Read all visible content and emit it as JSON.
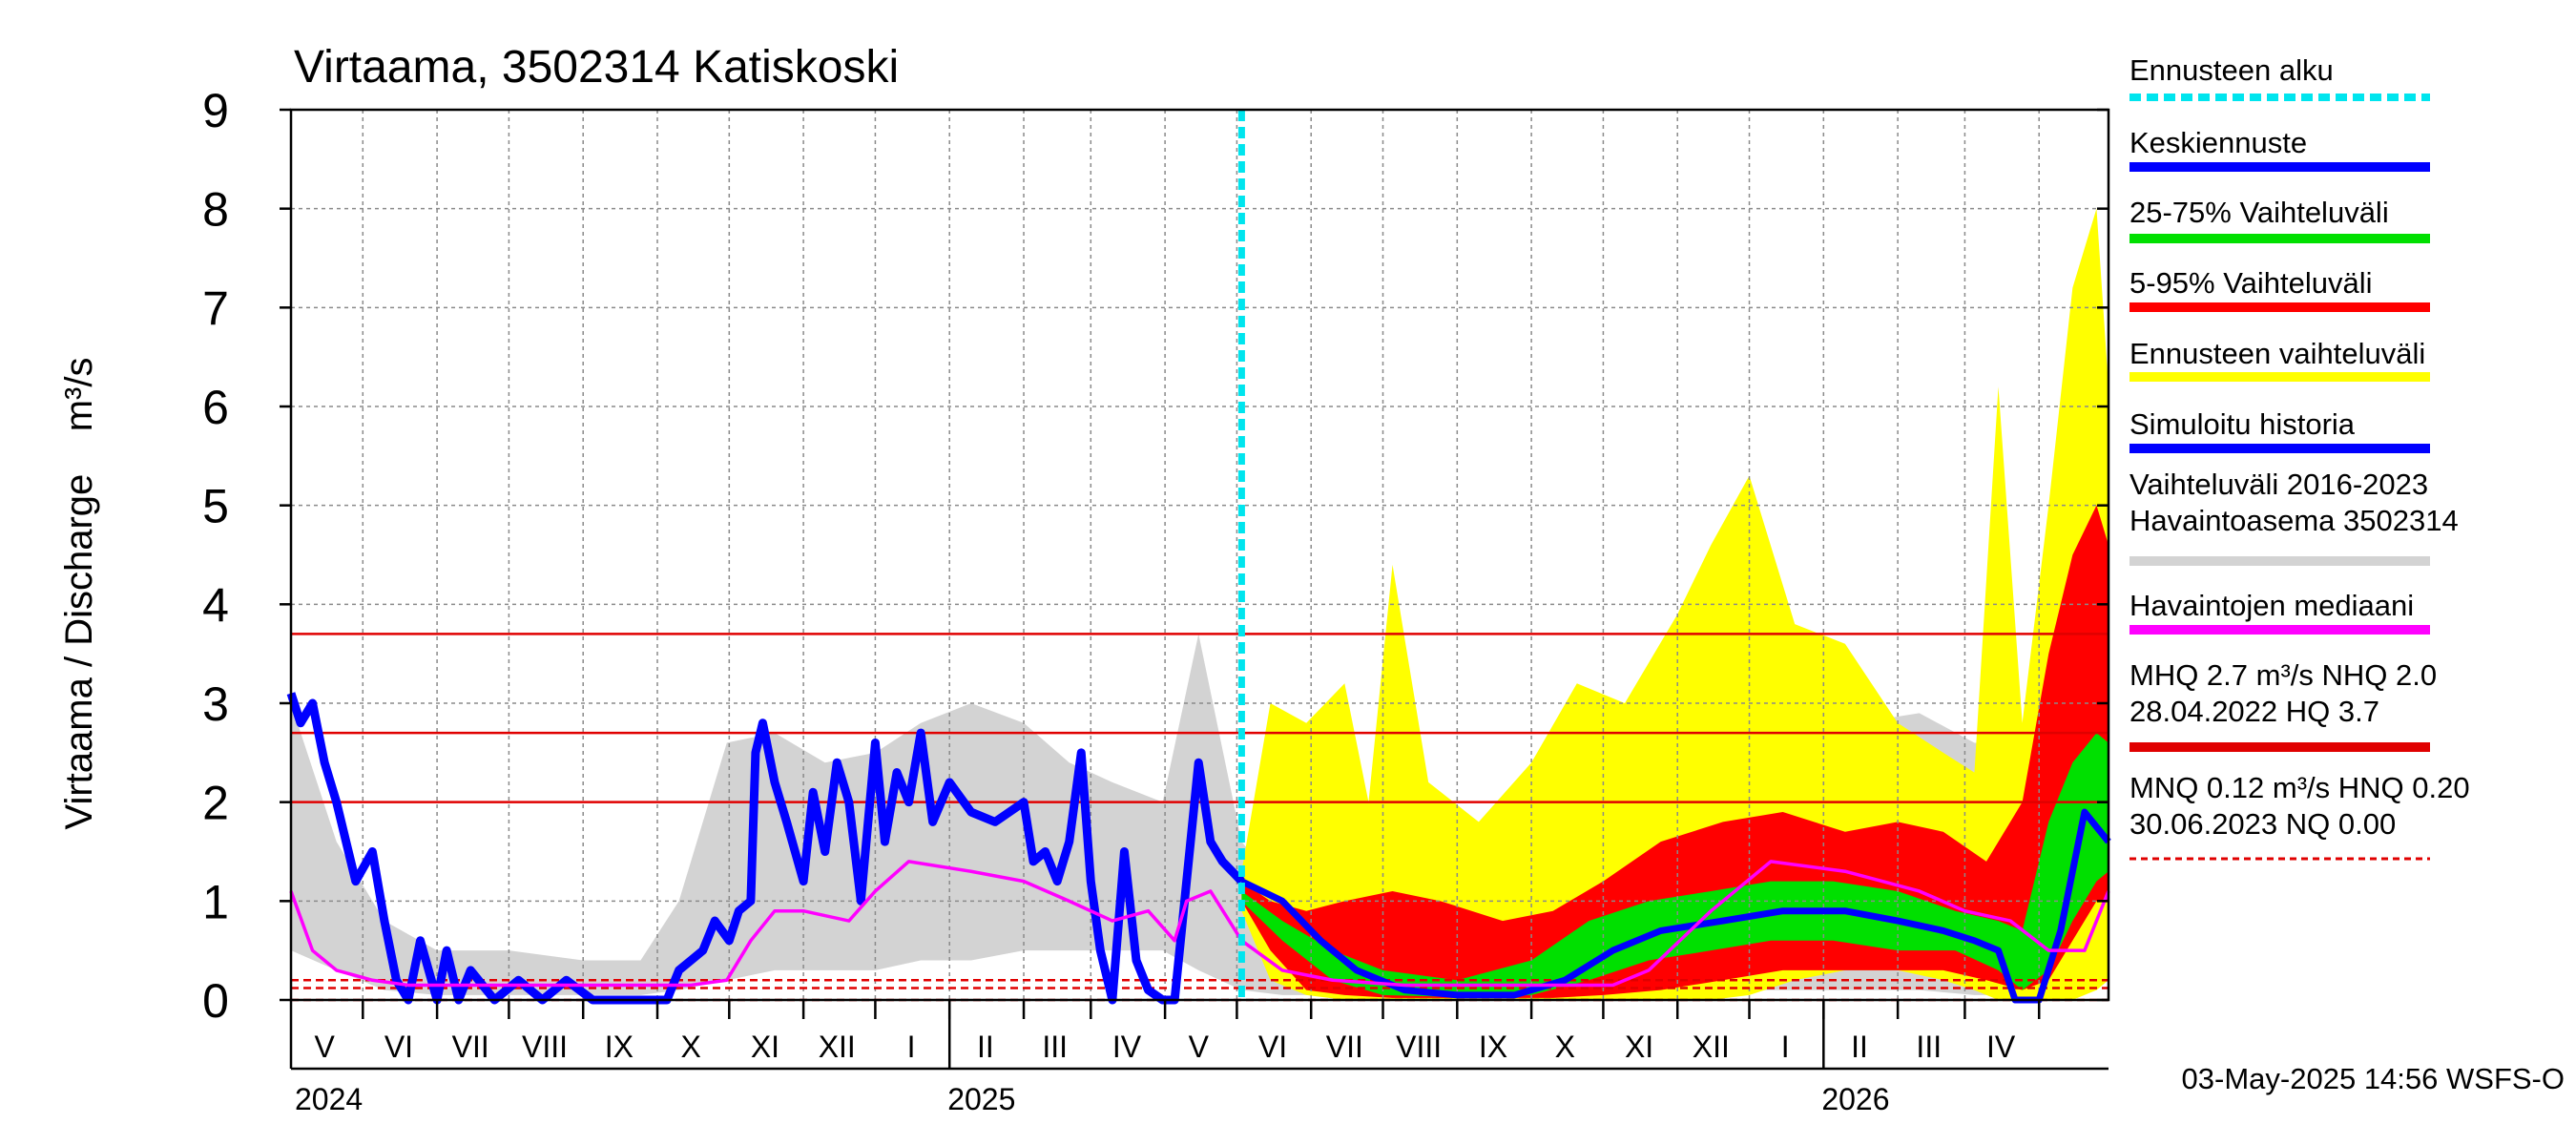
{
  "chart_data": {
    "type": "line",
    "title": "Virtaama, 3502314 Katiskoski",
    "ylabel": "Virtaama / Discharge    m³/s",
    "ylim": [
      0,
      9
    ],
    "yticks": [
      "0",
      "1",
      "2",
      "3",
      "4",
      "5",
      "6",
      "7",
      "8",
      "9"
    ],
    "x_start": "2024-04-01",
    "x_end": "2026-04-30",
    "forecast_start": "2025-05-03",
    "month_labels": [
      {
        "date": "2024-04-15",
        "label": "V"
      },
      {
        "date": "2024-05-16",
        "label": "VI"
      },
      {
        "date": "2024-06-15",
        "label": "VII"
      },
      {
        "date": "2024-07-16",
        "label": "VIII"
      },
      {
        "date": "2024-08-16",
        "label": "IX"
      },
      {
        "date": "2024-09-15",
        "label": "X"
      },
      {
        "date": "2024-10-16",
        "label": "XI"
      },
      {
        "date": "2024-11-15",
        "label": "XII"
      },
      {
        "date": "2024-12-16",
        "label": "I"
      },
      {
        "date": "2025-01-16",
        "label": "II"
      },
      {
        "date": "2025-02-14",
        "label": "III"
      },
      {
        "date": "2025-03-16",
        "label": "IV"
      },
      {
        "date": "2025-04-15",
        "label": "V"
      },
      {
        "date": "2025-05-16",
        "label": "VI"
      },
      {
        "date": "2025-06-15",
        "label": "VII"
      },
      {
        "date": "2025-07-16",
        "label": "VIII"
      },
      {
        "date": "2025-08-16",
        "label": "IX"
      },
      {
        "date": "2025-09-15",
        "label": "X"
      },
      {
        "date": "2025-10-16",
        "label": "XI"
      },
      {
        "date": "2025-11-15",
        "label": "XII"
      },
      {
        "date": "2025-12-16",
        "label": "I"
      },
      {
        "date": "2026-01-16",
        "label": "II"
      },
      {
        "date": "2026-02-14",
        "label": "III"
      },
      {
        "date": "2026-03-16",
        "label": "IV"
      }
    ],
    "year_labels": [
      {
        "date": "2024-04-01",
        "label": "2024"
      },
      {
        "date": "2025-01-01",
        "label": "2025"
      },
      {
        "date": "2026-01-01",
        "label": "2026"
      }
    ],
    "reference_lines": [
      {
        "name": "HQ",
        "value": 3.7,
        "color": "#e00000",
        "style": "solid"
      },
      {
        "name": "MHQ",
        "value": 2.7,
        "color": "#e00000",
        "style": "solid"
      },
      {
        "name": "NHQ",
        "value": 2.0,
        "color": "#e00000",
        "style": "solid"
      },
      {
        "name": "HNQ",
        "value": 0.2,
        "color": "#e00000",
        "style": "dashed"
      },
      {
        "name": "MNQ",
        "value": 0.12,
        "color": "#e00000",
        "style": "dashed"
      },
      {
        "name": "NQ",
        "value": 0.0,
        "color": "#e00000",
        "style": "dashed"
      }
    ],
    "series": [
      {
        "name": "Vaihteluväli 2016-2023 Havaintoasema 3502314",
        "kind": "band",
        "color": "#d3d3d3",
        "x": [
          "2024-04-01",
          "2024-04-20",
          "2024-05-10",
          "2024-06-01",
          "2024-07-01",
          "2024-08-01",
          "2024-08-25",
          "2024-09-10",
          "2024-09-30",
          "2024-10-20",
          "2024-11-10",
          "2024-12-01",
          "2024-12-20",
          "2025-01-10",
          "2025-02-01",
          "2025-02-20",
          "2025-03-10",
          "2025-03-31",
          "2025-04-15",
          "2025-05-03",
          "2025-05-20",
          "2025-06-10",
          "2025-07-01",
          "2025-08-01",
          "2025-08-25",
          "2025-09-15",
          "2025-10-10",
          "2025-11-01",
          "2025-11-25",
          "2025-12-20",
          "2026-01-15",
          "2026-02-10",
          "2026-03-05",
          "2026-03-25",
          "2026-04-15",
          "2026-04-30"
        ],
        "low": [
          0.5,
          0.3,
          0.1,
          0.05,
          0.05,
          0.05,
          0.05,
          0.1,
          0.2,
          0.3,
          0.3,
          0.3,
          0.4,
          0.4,
          0.5,
          0.5,
          0.5,
          0.5,
          0.3,
          0.1,
          0.05,
          0.05,
          0.05,
          0.05,
          0.05,
          0.05,
          0.05,
          0.05,
          0.1,
          0.1,
          0.1,
          0.1,
          0.05,
          0.05,
          0.1,
          0.2
        ],
        "high": [
          3.0,
          1.6,
          0.8,
          0.5,
          0.5,
          0.4,
          0.4,
          1.0,
          2.6,
          2.7,
          2.4,
          2.5,
          2.8,
          3.0,
          2.8,
          2.4,
          2.2,
          2.0,
          3.7,
          1.6,
          1.1,
          0.8,
          0.7,
          0.7,
          1.2,
          1.8,
          2.4,
          2.6,
          2.6,
          2.7,
          2.8,
          2.9,
          2.6,
          2.6,
          3.7,
          3.4
        ]
      },
      {
        "name": "Ennusteen vaihteluväli",
        "kind": "band",
        "color": "#ffff00",
        "x": [
          "2025-05-03",
          "2025-05-15",
          "2025-05-30",
          "2025-06-15",
          "2025-06-25",
          "2025-07-05",
          "2025-07-20",
          "2025-08-10",
          "2025-09-01",
          "2025-09-20",
          "2025-10-10",
          "2025-11-01",
          "2025-11-15",
          "2025-12-01",
          "2025-12-20",
          "2026-01-10",
          "2026-02-01",
          "2026-02-20",
          "2026-03-05",
          "2026-03-15",
          "2026-03-25",
          "2026-04-05",
          "2026-04-15",
          "2026-04-25",
          "2026-04-30"
        ],
        "low": [
          0.9,
          0.2,
          0.05,
          0.0,
          0.0,
          0.0,
          0.0,
          0.0,
          0.0,
          0.0,
          0.0,
          0.0,
          0.0,
          0.05,
          0.2,
          0.3,
          0.3,
          0.2,
          0.1,
          0.0,
          0.0,
          0.0,
          0.0,
          0.1,
          0.2
        ],
        "high": [
          1.3,
          3.0,
          2.8,
          3.2,
          2.0,
          4.4,
          2.2,
          1.8,
          2.4,
          3.2,
          3.0,
          3.9,
          4.6,
          5.3,
          3.8,
          3.6,
          2.8,
          2.5,
          2.3,
          6.2,
          2.8,
          5.0,
          7.2,
          8.0,
          6.2
        ]
      },
      {
        "name": "5-95% Vaihteluväli",
        "kind": "band",
        "color": "#ff0000",
        "x": [
          "2025-05-03",
          "2025-05-15",
          "2025-05-30",
          "2025-06-15",
          "2025-07-05",
          "2025-07-25",
          "2025-08-20",
          "2025-09-10",
          "2025-10-01",
          "2025-10-25",
          "2025-11-20",
          "2025-12-15",
          "2026-01-10",
          "2026-02-01",
          "2026-02-20",
          "2026-03-10",
          "2026-03-25",
          "2026-04-05",
          "2026-04-15",
          "2026-04-25",
          "2026-04-30"
        ],
        "low": [
          1.0,
          0.5,
          0.1,
          0.05,
          0.02,
          0.02,
          0.02,
          0.02,
          0.05,
          0.1,
          0.2,
          0.3,
          0.3,
          0.3,
          0.3,
          0.2,
          0.1,
          0.2,
          0.6,
          1.0,
          1.0
        ],
        "high": [
          1.2,
          1.0,
          0.9,
          1.0,
          1.1,
          1.0,
          0.8,
          0.9,
          1.2,
          1.6,
          1.8,
          1.9,
          1.7,
          1.8,
          1.7,
          1.4,
          2.0,
          3.5,
          4.5,
          5.0,
          4.6
        ]
      },
      {
        "name": "25-75% Vaihteluväli",
        "kind": "band",
        "color": "#00e000",
        "x": [
          "2025-05-03",
          "2025-05-20",
          "2025-06-10",
          "2025-07-01",
          "2025-08-01",
          "2025-09-01",
          "2025-09-25",
          "2025-10-20",
          "2025-11-15",
          "2025-12-10",
          "2026-01-05",
          "2026-02-01",
          "2026-02-25",
          "2026-03-15",
          "2026-03-25",
          "2026-04-05",
          "2026-04-15",
          "2026-04-25",
          "2026-04-30"
        ],
        "low": [
          1.0,
          0.6,
          0.2,
          0.05,
          0.03,
          0.05,
          0.2,
          0.4,
          0.5,
          0.6,
          0.6,
          0.5,
          0.5,
          0.3,
          0.1,
          0.3,
          0.8,
          1.2,
          1.3
        ],
        "high": [
          1.1,
          0.8,
          0.5,
          0.3,
          0.2,
          0.4,
          0.8,
          1.0,
          1.1,
          1.2,
          1.2,
          1.1,
          0.9,
          0.8,
          0.7,
          1.8,
          2.4,
          2.7,
          2.6
        ]
      },
      {
        "name": "Simuloitu historia",
        "kind": "line",
        "color": "#0000ff",
        "x": [
          "2024-04-01",
          "2024-04-05",
          "2024-04-10",
          "2024-04-15",
          "2024-04-20",
          "2024-04-28",
          "2024-05-05",
          "2024-05-10",
          "2024-05-15",
          "2024-05-20",
          "2024-05-25",
          "2024-06-01",
          "2024-06-05",
          "2024-06-10",
          "2024-06-15",
          "2024-06-25",
          "2024-07-05",
          "2024-07-15",
          "2024-07-25",
          "2024-08-05",
          "2024-08-25",
          "2024-09-05",
          "2024-09-10",
          "2024-09-15",
          "2024-09-20",
          "2024-09-25",
          "2024-10-01",
          "2024-10-05",
          "2024-10-10",
          "2024-10-12",
          "2024-10-15",
          "2024-10-20",
          "2024-10-25",
          "2024-11-01",
          "2024-11-05",
          "2024-11-10",
          "2024-11-15",
          "2024-11-20",
          "2024-11-25",
          "2024-12-01",
          "2024-12-05",
          "2024-12-10",
          "2024-12-15",
          "2024-12-20",
          "2024-12-25",
          "2025-01-01",
          "2025-01-10",
          "2025-01-20",
          "2025-02-01",
          "2025-02-05",
          "2025-02-10",
          "2025-02-15",
          "2025-02-20",
          "2025-02-25",
          "2025-03-01",
          "2025-03-05",
          "2025-03-10",
          "2025-03-15",
          "2025-03-20",
          "2025-03-25",
          "2025-03-31",
          "2025-04-05",
          "2025-04-10",
          "2025-04-15",
          "2025-04-20",
          "2025-04-25",
          "2025-05-03"
        ],
        "y": [
          3.1,
          2.8,
          3.0,
          2.4,
          2.0,
          1.2,
          1.5,
          0.8,
          0.2,
          0.0,
          0.6,
          0.0,
          0.5,
          0.0,
          0.3,
          0.0,
          0.2,
          0.0,
          0.2,
          0.0,
          0.0,
          0.0,
          0.3,
          0.4,
          0.5,
          0.8,
          0.6,
          0.9,
          1.0,
          2.5,
          2.8,
          2.2,
          1.8,
          1.2,
          2.1,
          1.5,
          2.4,
          2.0,
          1.0,
          2.6,
          1.6,
          2.3,
          2.0,
          2.7,
          1.8,
          2.2,
          1.9,
          1.8,
          2.0,
          1.4,
          1.5,
          1.2,
          1.6,
          2.5,
          1.2,
          0.5,
          0.0,
          1.5,
          0.4,
          0.1,
          0.0,
          0.0,
          1.2,
          2.4,
          1.6,
          1.4,
          1.2
        ]
      },
      {
        "name": "Keskiennuste",
        "kind": "line",
        "color": "#0000ff",
        "x": [
          "2025-05-03",
          "2025-05-20",
          "2025-06-05",
          "2025-06-20",
          "2025-07-10",
          "2025-08-01",
          "2025-08-25",
          "2025-09-15",
          "2025-10-05",
          "2025-10-25",
          "2025-11-20",
          "2025-12-15",
          "2026-01-10",
          "2026-02-01",
          "2026-02-20",
          "2026-03-05",
          "2026-03-15",
          "2026-03-22",
          "2026-04-01",
          "2026-04-10",
          "2026-04-20",
          "2026-04-30"
        ],
        "y": [
          1.2,
          1.0,
          0.6,
          0.3,
          0.1,
          0.05,
          0.05,
          0.2,
          0.5,
          0.7,
          0.8,
          0.9,
          0.9,
          0.8,
          0.7,
          0.6,
          0.5,
          0.0,
          0.0,
          0.7,
          1.9,
          1.6
        ]
      },
      {
        "name": "Havaintojen mediaani",
        "kind": "line",
        "color": "#ff00ff",
        "x": [
          "2024-04-01",
          "2024-04-10",
          "2024-04-20",
          "2024-05-05",
          "2024-05-20",
          "2024-06-10",
          "2024-07-15",
          "2024-08-15",
          "2024-09-15",
          "2024-09-30",
          "2024-10-10",
          "2024-10-20",
          "2024-11-01",
          "2024-11-20",
          "2024-12-01",
          "2024-12-15",
          "2025-01-10",
          "2025-02-01",
          "2025-02-20",
          "2025-03-10",
          "2025-03-25",
          "2025-04-05",
          "2025-04-10",
          "2025-04-20",
          "2025-05-03",
          "2025-05-20",
          "2025-06-10",
          "2025-07-10",
          "2025-08-10",
          "2025-09-10",
          "2025-10-05",
          "2025-10-20",
          "2025-11-15",
          "2025-12-10",
          "2026-01-10",
          "2026-02-10",
          "2026-03-01",
          "2026-03-20",
          "2026-04-05",
          "2026-04-20",
          "2026-04-30"
        ],
        "y": [
          1.1,
          0.5,
          0.3,
          0.2,
          0.15,
          0.15,
          0.15,
          0.15,
          0.15,
          0.2,
          0.6,
          0.9,
          0.9,
          0.8,
          1.1,
          1.4,
          1.3,
          1.2,
          1.0,
          0.8,
          0.9,
          0.6,
          1.0,
          1.1,
          0.6,
          0.3,
          0.2,
          0.15,
          0.15,
          0.15,
          0.15,
          0.3,
          0.9,
          1.4,
          1.3,
          1.1,
          0.9,
          0.8,
          0.5,
          0.5,
          1.1
        ]
      },
      {
        "name": "Ennusteen alku",
        "kind": "vline",
        "color": "#00e5ee",
        "x": "2025-05-03"
      }
    ],
    "legend": {
      "placement": "right",
      "entries": [
        {
          "text": "Ennusteen alku",
          "color": "#00e5ee",
          "style": "dashed"
        },
        {
          "text": "Keskiennuste",
          "color": "#0000ff",
          "style": "solid"
        },
        {
          "text": "25-75% Vaihteluväli",
          "color": "#00e000",
          "style": "solid"
        },
        {
          "text": "5-95% Vaihteluväli",
          "color": "#ff0000",
          "style": "solid"
        },
        {
          "text": "Ennusteen vaihteluväli",
          "color": "#ffff00",
          "style": "solid"
        },
        {
          "text": "Simuloitu historia",
          "color": "#0000ff",
          "style": "solid"
        },
        {
          "text": "Vaihteluväli 2016-2023\n Havaintoasema 3502314",
          "color": "#d3d3d3",
          "style": "solid"
        },
        {
          "text": "Havaintojen mediaani",
          "color": "#ff00ff",
          "style": "solid"
        },
        {
          "text": "MHQ  2.7 m³/s NHQ  2.0\n28.04.2022 HQ  3.7",
          "color": "#e00000",
          "style": "solid"
        },
        {
          "text": "MNQ 0.12 m³/s HNQ 0.20\n30.06.2023 NQ 0.00",
          "color": "#e00000",
          "style": "dashed"
        }
      ]
    },
    "footer": "03-May-2025 14:56 WSFS-O",
    "grid": true
  }
}
